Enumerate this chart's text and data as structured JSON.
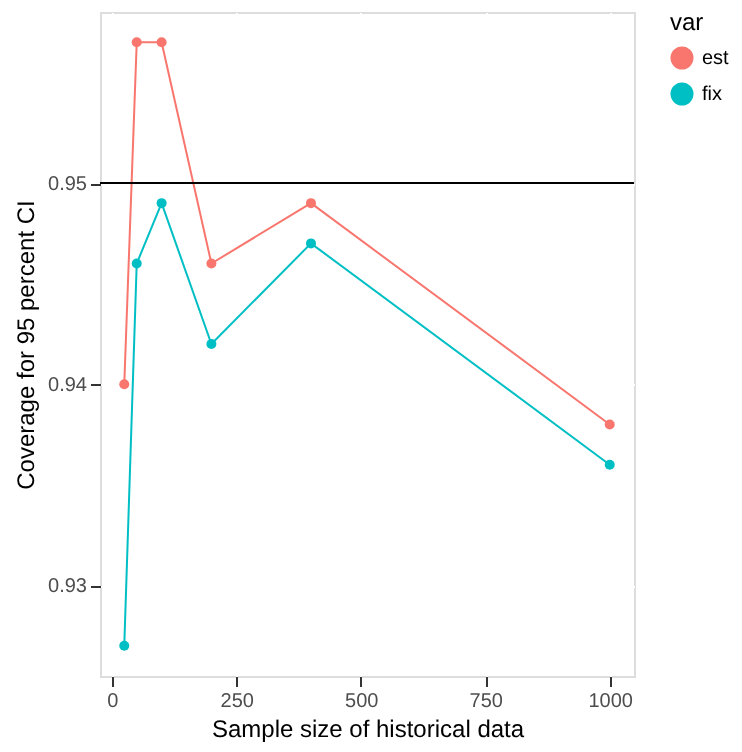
{
  "chart_data": {
    "type": "line",
    "xlabel": "Sample size of historical data",
    "ylabel": "Coverage for 95 percent CI",
    "legend_title": "var",
    "x": [
      25,
      50,
      100,
      200,
      400,
      1000
    ],
    "series": [
      {
        "name": "est",
        "color": "#f8766d",
        "values": [
          0.94,
          0.957,
          0.957,
          0.946,
          0.949,
          0.938
        ]
      },
      {
        "name": "fix",
        "color": "#00bfc4",
        "values": [
          0.927,
          0.946,
          0.949,
          0.942,
          0.947,
          0.936
        ]
      }
    ],
    "xlim": [
      -23.75,
      1048.75
    ],
    "xticks": [
      0,
      250,
      500,
      750,
      1000
    ],
    "ylim": [
      0.9255,
      0.9585
    ],
    "yticks": [
      0.93,
      0.94,
      0.95
    ],
    "ref_lines": [
      {
        "axis": "y",
        "value": 0.95,
        "color": "#000000"
      }
    ],
    "grid": true,
    "legend": "right",
    "marker": "circle",
    "line_style": "solid"
  }
}
